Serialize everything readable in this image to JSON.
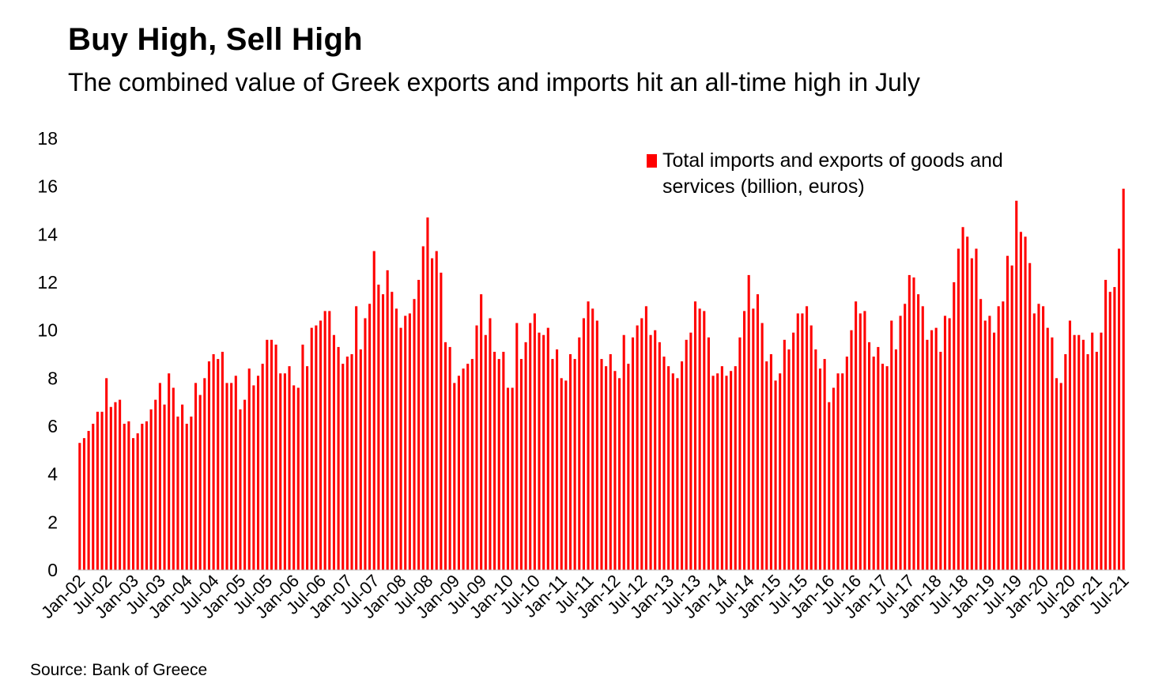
{
  "title": "Buy High, Sell High",
  "subtitle": "The combined value of Greek exports and imports hit an all-time high in July",
  "source": "Source: Bank of Greece",
  "chart_data": {
    "type": "bar",
    "title": "Buy High, Sell High",
    "subtitle": "The combined value of Greek exports and imports hit an all-time high in July",
    "xlabel": "",
    "ylabel": "",
    "ylim": [
      0,
      18
    ],
    "yticks": [
      0,
      2,
      4,
      6,
      8,
      10,
      12,
      14,
      16,
      18
    ],
    "grid": false,
    "legend_position": "top-right",
    "color": "#ff0000",
    "x_tick_labels": [
      "Jan-02",
      "Jul-02",
      "Jan-03",
      "Jul-03",
      "Jan-04",
      "Jul-04",
      "Jan-05",
      "Jul-05",
      "Jan-06",
      "Jul-06",
      "Jan-07",
      "Jul-07",
      "Jan-08",
      "Jul-08",
      "Jan-09",
      "Jul-09",
      "Jan-10",
      "Jul-10",
      "Jan-11",
      "Jul-11",
      "Jan-12",
      "Jul-12",
      "Jan-13",
      "Jul-13",
      "Jan-14",
      "Jul-14",
      "Jan-15",
      "Jul-15",
      "Jan-16",
      "Jul-16",
      "Jan-17",
      "Jul-17",
      "Jan-18",
      "Jul-18",
      "Jan-19",
      "Jul-19",
      "Jan-20",
      "Jul-20",
      "Jan-21",
      "Jul-21"
    ],
    "series": [
      {
        "name": "Total imports and exports of goods and services (billion, euros)",
        "values": [
          5.3,
          5.5,
          5.8,
          6.1,
          6.6,
          6.6,
          8.0,
          6.8,
          7.0,
          7.1,
          6.1,
          6.2,
          5.5,
          5.7,
          6.1,
          6.2,
          6.7,
          7.1,
          7.8,
          6.9,
          8.2,
          7.6,
          6.4,
          6.9,
          6.1,
          6.4,
          7.8,
          7.3,
          8.0,
          8.7,
          9.0,
          8.8,
          9.1,
          7.8,
          7.8,
          8.1,
          6.7,
          7.1,
          8.4,
          7.7,
          8.1,
          8.6,
          9.6,
          9.6,
          9.4,
          8.2,
          8.2,
          8.5,
          7.7,
          7.6,
          9.4,
          8.5,
          10.1,
          10.2,
          10.4,
          10.8,
          10.8,
          9.8,
          9.3,
          8.6,
          8.9,
          9.0,
          11.0,
          9.2,
          10.5,
          11.1,
          13.3,
          11.9,
          11.5,
          12.5,
          11.6,
          10.9,
          10.1,
          10.6,
          10.7,
          11.3,
          12.1,
          13.5,
          14.7,
          13.0,
          13.3,
          12.4,
          9.5,
          9.3,
          7.8,
          8.1,
          8.4,
          8.6,
          8.8,
          10.2,
          11.5,
          9.8,
          10.5,
          9.1,
          8.8,
          9.1,
          7.6,
          7.6,
          10.3,
          8.8,
          9.5,
          10.3,
          10.7,
          9.9,
          9.8,
          10.1,
          8.8,
          9.2,
          8.0,
          7.9,
          9.0,
          8.8,
          9.7,
          10.5,
          11.2,
          10.9,
          10.4,
          8.8,
          8.5,
          9.0,
          8.3,
          8.0,
          9.8,
          8.6,
          9.7,
          10.2,
          10.5,
          11.0,
          9.8,
          10.0,
          9.5,
          8.9,
          8.5,
          8.2,
          8.0,
          8.7,
          9.6,
          9.9,
          11.2,
          10.9,
          10.8,
          9.7,
          8.1,
          8.2,
          8.5,
          8.1,
          8.3,
          8.5,
          9.7,
          10.8,
          12.3,
          10.9,
          11.5,
          10.3,
          8.7,
          9.0,
          7.9,
          8.2,
          9.6,
          9.2,
          9.9,
          10.7,
          10.7,
          11.0,
          10.2,
          9.2,
          8.4,
          8.8,
          7.0,
          7.6,
          8.2,
          8.2,
          8.9,
          10.0,
          11.2,
          10.7,
          10.8,
          9.5,
          8.9,
          9.3,
          8.6,
          8.5,
          10.4,
          9.2,
          10.6,
          11.1,
          12.3,
          12.2,
          11.5,
          11.0,
          9.6,
          10.0,
          10.1,
          9.1,
          10.6,
          10.5,
          12.0,
          13.4,
          14.3,
          13.9,
          13.0,
          13.4,
          11.3,
          10.4,
          10.6,
          9.9,
          11.0,
          11.2,
          13.1,
          12.7,
          15.4,
          14.1,
          13.9,
          12.8,
          10.7,
          11.1,
          11.0,
          10.1,
          9.7,
          8.0,
          7.8,
          9.0,
          10.4,
          9.8,
          9.8,
          9.6,
          9.0,
          9.9,
          9.1,
          9.9,
          12.1,
          11.6,
          11.8,
          13.4,
          15.9
        ]
      }
    ]
  }
}
